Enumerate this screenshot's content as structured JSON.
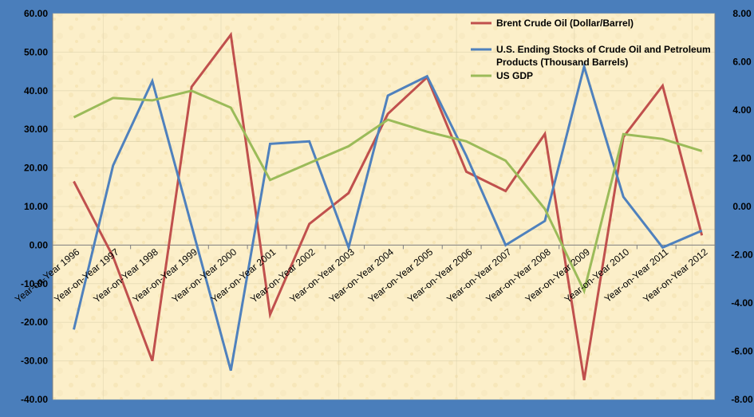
{
  "chart_data": {
    "type": "line",
    "categories": [
      "Year-on-Year 1996",
      "Year-on-Year 1997",
      "Year-on-Year 1998",
      "Year-on-Year 1999",
      "Year-on-Year 2000",
      "Year-on-Year 2001",
      "Year-on-Year 2002",
      "Year-on-Year 2003",
      "Year-on-Year 2004",
      "Year-on-Year 2005",
      "Year-on-Year 2006",
      "Year-on-Year 2007",
      "Year-on-Year 2008",
      "Year-on-Year 2009",
      "Year-on-Year 2010",
      "Year-on-Year 2011",
      "Year-on-Year 2012"
    ],
    "y_left": {
      "ylim": [
        -40,
        60
      ],
      "ticks": [
        "-40.00",
        "-30.00",
        "-20.00",
        "-10.00",
        "0.00",
        "10.00",
        "20.00",
        "30.00",
        "40.00",
        "50.00",
        "60.00"
      ]
    },
    "y_right": {
      "ylim": [
        -8,
        8
      ],
      "ticks": [
        "-8.00",
        "-6.00",
        "-4.00",
        "-2.00",
        "0.00",
        "2.00",
        "4.00",
        "6.00",
        "8.00"
      ]
    },
    "series": [
      {
        "name": "Brent Crude Oil (Dollar/Barrel)",
        "axis": "left",
        "color": "#c0504d",
        "values": [
          16.5,
          -3.0,
          -30.0,
          41.0,
          54.5,
          -18.0,
          5.5,
          13.5,
          34.0,
          43.5,
          19.0,
          14.0,
          28.8,
          -35.0,
          28.0,
          41.3,
          2.5
        ]
      },
      {
        "name": "U.S. Ending Stocks of Crude Oil and Petroleum Products (Thousand Barrels)",
        "name_lines": [
          "U.S. Ending Stocks of Crude Oil and Petroleum",
          "Products (Thousand Barrels)"
        ],
        "axis": "right",
        "color": "#4f81bd",
        "values": [
          -5.1,
          1.7,
          5.2,
          -0.8,
          -6.8,
          2.6,
          2.7,
          -1.7,
          4.6,
          5.4,
          2.1,
          -1.6,
          -0.6,
          5.8,
          0.4,
          -1.7,
          -1.0
        ]
      },
      {
        "name": "US GDP",
        "axis": "right",
        "color": "#9bbb59",
        "values": [
          3.7,
          4.5,
          4.4,
          4.8,
          4.1,
          1.1,
          1.8,
          2.5,
          3.6,
          3.1,
          2.7,
          1.9,
          -0.1,
          -3.5,
          3.0,
          2.8,
          2.3
        ]
      }
    ],
    "legend_position": "top-right",
    "grid": true
  }
}
